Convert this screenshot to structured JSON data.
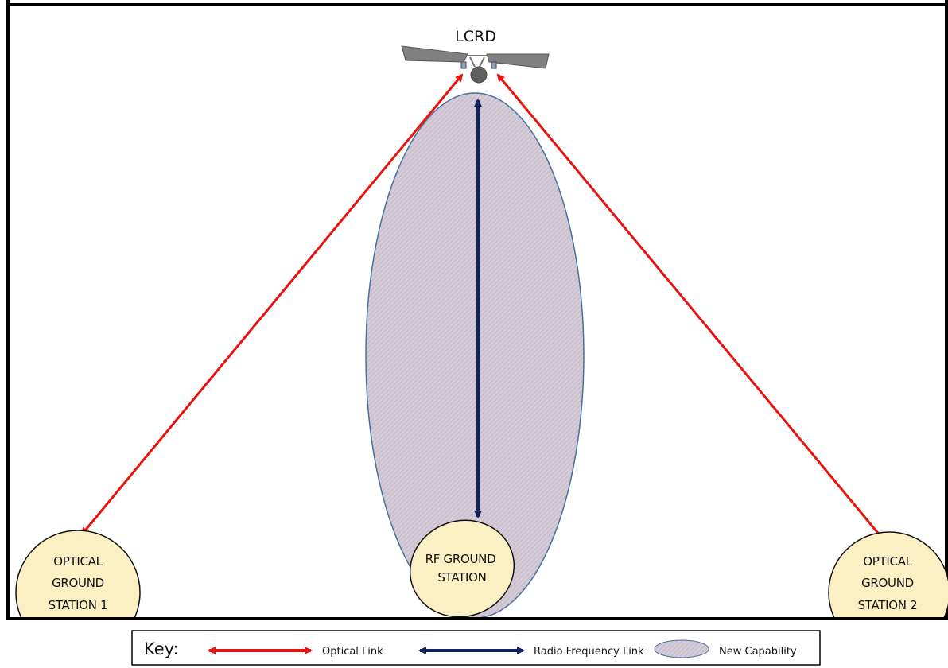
{
  "satellite": {
    "label": "LCRD",
    "icon": "satellite-icon"
  },
  "stations": {
    "optical_1": [
      "OPTICAL",
      "GROUND",
      "STATION 1"
    ],
    "optical_2": [
      "OPTICAL",
      "GROUND",
      "STATION 2"
    ],
    "rf": [
      "RF GROUND",
      "STATION"
    ]
  },
  "links": {
    "optical": {
      "color": "#e8130e"
    },
    "rf": {
      "color": "#0f2460"
    }
  },
  "capability": {
    "fill": "#c9c9d8",
    "hatch": "#d98a9a"
  },
  "station_fill": "#fbefc4",
  "key": {
    "title": "Key:",
    "optical_link": "Optical Link",
    "rf_link": "Radio Frequency Link",
    "new_capability": "New Capability"
  }
}
